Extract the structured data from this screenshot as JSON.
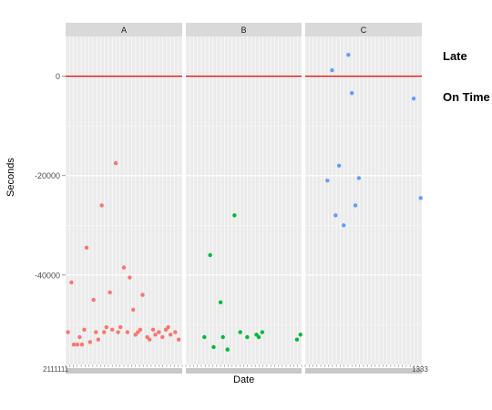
{
  "chart_data": {
    "type": "scatter",
    "xlabel": "Date",
    "ylabel": "Seconds",
    "ylim": [
      -58000,
      8000
    ],
    "y_ticks": [
      {
        "value": 0,
        "label": "0"
      },
      {
        "value": -20000,
        "label": "-20000"
      },
      {
        "value": -40000,
        "label": "-40000"
      }
    ],
    "x_tick_labels_edge": {
      "left": "2111111",
      "right": "1333"
    },
    "reference_line": {
      "y": 0,
      "color": "#f00000"
    },
    "grid": true,
    "panels": [
      {
        "name": "A",
        "color": "#f8766d",
        "x_points": [
          0.02,
          0.05,
          0.07,
          0.1,
          0.12,
          0.14,
          0.16,
          0.18,
          0.21,
          0.24,
          0.26,
          0.28,
          0.31,
          0.33,
          0.35,
          0.38,
          0.4,
          0.43,
          0.45,
          0.47,
          0.5,
          0.53,
          0.55,
          0.58,
          0.6,
          0.62,
          0.64,
          0.66,
          0.7,
          0.72,
          0.75,
          0.77,
          0.8,
          0.83,
          0.86,
          0.88,
          0.9,
          0.94,
          0.97
        ],
        "y": [
          -51500,
          -41500,
          -54000,
          -54000,
          -52500,
          -54000,
          -51000,
          -34500,
          -53500,
          -45000,
          -51500,
          -53000,
          -26000,
          -51500,
          -50500,
          -43500,
          -51000,
          -17500,
          -51500,
          -50500,
          -38500,
          -51500,
          -40500,
          -47000,
          -52000,
          -51500,
          -51000,
          -44000,
          -52500,
          -53000,
          -51000,
          -52000,
          -51500,
          -52500,
          -51000,
          -50500,
          -52000,
          -51500,
          -53000
        ]
      },
      {
        "name": "B",
        "color": "#00ba38",
        "x_points": [
          0.16,
          0.21,
          0.24,
          0.3,
          0.32,
          0.36,
          0.42,
          0.47,
          0.53,
          0.61,
          0.63,
          0.66,
          0.96,
          0.99
        ],
        "y": [
          -52500,
          -36000,
          -54500,
          -45500,
          -52500,
          -55000,
          -28000,
          -51500,
          -52500,
          -52000,
          -52500,
          -51500,
          -53000,
          -52000
        ]
      },
      {
        "name": "C",
        "color": "#619cff",
        "x_points": [
          0.19,
          0.23,
          0.26,
          0.29,
          0.33,
          0.37,
          0.4,
          0.43,
          0.46,
          0.93,
          0.99
        ],
        "y": [
          -21000,
          1200,
          -28000,
          -18000,
          -30000,
          4300,
          -3400,
          -26000,
          -20500,
          -4500,
          -24500
        ]
      }
    ]
  },
  "legend": {
    "late": "Late",
    "on_time": "On Time"
  }
}
